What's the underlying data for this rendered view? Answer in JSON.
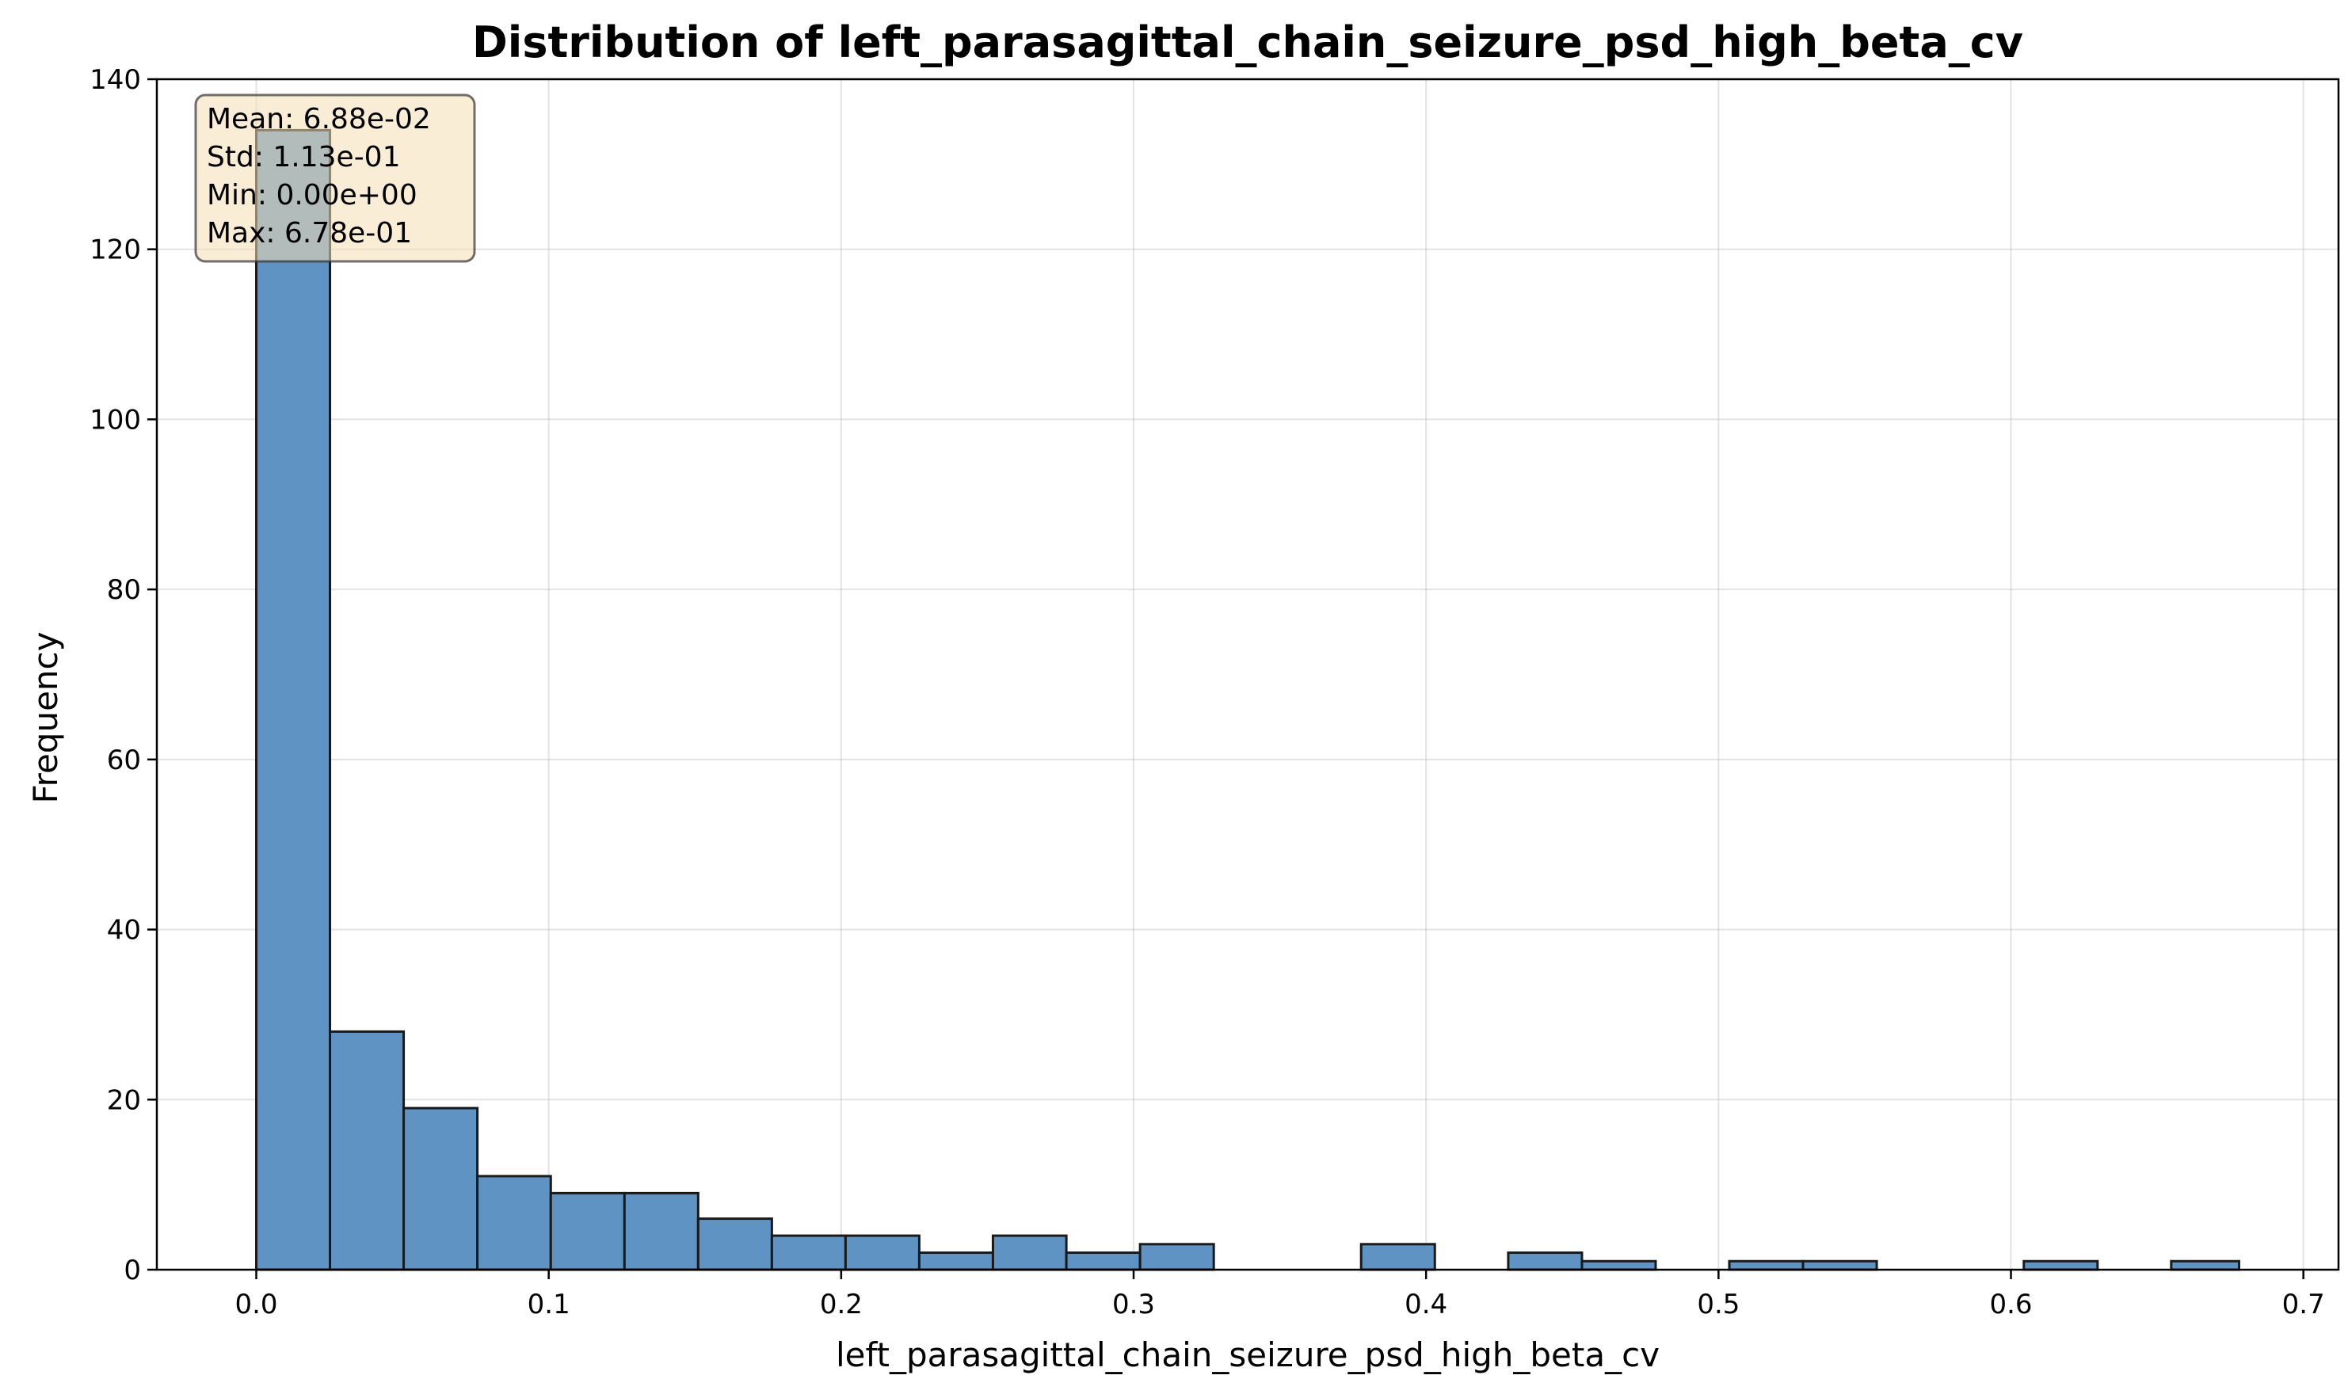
{
  "chart_data": {
    "type": "bar",
    "subtype": "histogram",
    "title": "Distribution of left_parasagittal_chain_seizure_psd_high_beta_cv",
    "xlabel": "left_parasagittal_chain_seizure_psd_high_beta_cv",
    "ylabel": "Frequency",
    "xlim": [
      -0.034,
      0.712
    ],
    "ylim": [
      0,
      140
    ],
    "xticks": [
      0.0,
      0.1,
      0.2,
      0.3,
      0.4,
      0.5,
      0.6,
      0.7
    ],
    "xtick_labels": [
      "0.0",
      "0.1",
      "0.2",
      "0.3",
      "0.4",
      "0.5",
      "0.6",
      "0.7"
    ],
    "yticks": [
      0,
      20,
      40,
      60,
      80,
      100,
      120,
      140
    ],
    "ytick_labels": [
      "0",
      "20",
      "40",
      "60",
      "80",
      "100",
      "120",
      "140"
    ],
    "grid": true,
    "bar_color": "#5f93c3",
    "edge_color": "#1a1a1a",
    "bin_edges": [
      0.0,
      0.0252,
      0.0504,
      0.0756,
      0.1007,
      0.1259,
      0.1511,
      0.1763,
      0.2015,
      0.2267,
      0.2519,
      0.277,
      0.3022,
      0.3274,
      0.3526,
      0.3778,
      0.403,
      0.4281,
      0.4533,
      0.4785,
      0.5037,
      0.5289,
      0.5541,
      0.5793,
      0.6044,
      0.6296,
      0.6548,
      0.678
    ],
    "counts": [
      134,
      28,
      19,
      11,
      9,
      9,
      6,
      4,
      4,
      2,
      4,
      2,
      3,
      0,
      0,
      3,
      0,
      2,
      1,
      0,
      1,
      1,
      0,
      0,
      1,
      0,
      1
    ],
    "stats_box": {
      "lines": [
        "Mean: 6.88e-02",
        "Std: 1.13e-01",
        "Min: 0.00e+00",
        "Max: 6.78e-01"
      ],
      "facecolor": "#f5deb3",
      "placement": "top-left"
    }
  }
}
